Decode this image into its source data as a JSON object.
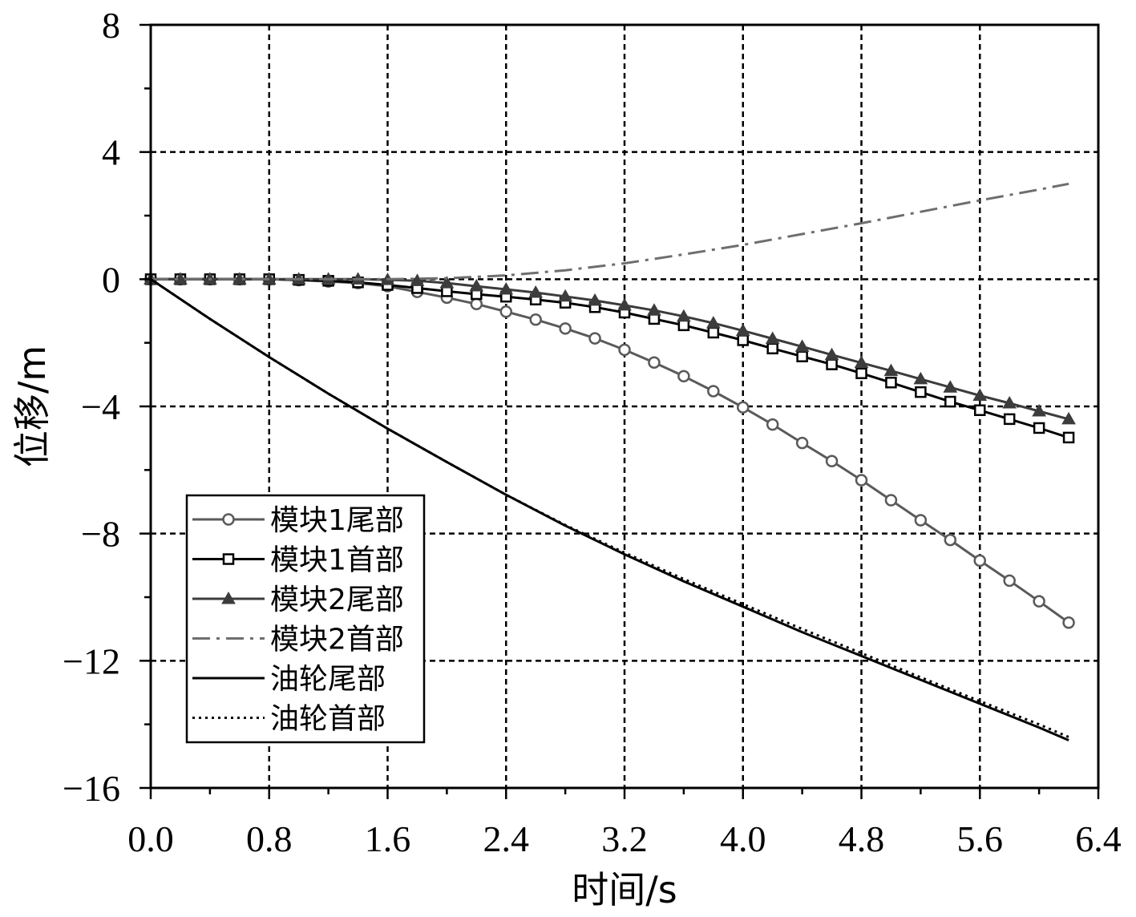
{
  "chart_data": {
    "type": "line",
    "title": "",
    "xlabel": "时间/s",
    "ylabel": "位移/m",
    "xlim": [
      0,
      6.4
    ],
    "ylim": [
      -16,
      8
    ],
    "xticks": [
      0.0,
      0.8,
      1.6,
      2.4,
      3.2,
      4.0,
      4.8,
      5.6,
      6.4
    ],
    "xtick_labels": [
      "0.0",
      "0.8",
      "1.6",
      "2.4",
      "3.2",
      "4.0",
      "4.8",
      "5.6",
      "6.4"
    ],
    "yticks": [
      8,
      4,
      0,
      -4,
      -8,
      -12,
      -16
    ],
    "ytick_labels": [
      "8",
      "4",
      "0",
      "−4",
      "−8",
      "−12",
      "−16"
    ],
    "grid": true,
    "legend_position": "bottom-left",
    "marker_x": [
      0.0,
      0.2,
      0.4,
      0.6,
      0.8,
      1.0,
      1.2,
      1.4,
      1.6,
      1.8,
      2.0,
      2.2,
      2.4,
      2.6,
      2.8,
      3.0,
      3.2,
      3.4,
      3.6,
      3.8,
      4.0,
      4.2,
      4.4,
      4.6,
      4.8,
      5.0,
      5.2,
      5.4,
      5.6,
      5.8,
      6.0,
      6.2
    ],
    "series": [
      {
        "name": "模块1尾部",
        "color": "#5a5a5a",
        "line": "solid",
        "marker": "circle",
        "values": [
          0,
          0,
          0,
          0,
          0,
          -0.03,
          -0.07,
          -0.12,
          -0.22,
          -0.4,
          -0.58,
          -0.78,
          -1.02,
          -1.27,
          -1.55,
          -1.86,
          -2.22,
          -2.62,
          -3.05,
          -3.52,
          -4.03,
          -4.57,
          -5.15,
          -5.72,
          -6.32,
          -6.95,
          -7.58,
          -8.2,
          -8.85,
          -9.48,
          -10.13,
          -10.8
        ]
      },
      {
        "name": "模块1首部",
        "color": "#000000",
        "line": "solid",
        "marker": "square",
        "values": [
          0,
          0,
          0,
          0,
          0,
          -0.02,
          -0.05,
          -0.1,
          -0.18,
          -0.28,
          -0.38,
          -0.47,
          -0.55,
          -0.64,
          -0.74,
          -0.88,
          -1.05,
          -1.25,
          -1.45,
          -1.68,
          -1.92,
          -2.18,
          -2.43,
          -2.68,
          -2.96,
          -3.25,
          -3.55,
          -3.85,
          -4.12,
          -4.4,
          -4.68,
          -4.98
        ]
      },
      {
        "name": "模块2尾部",
        "color": "#3c3c3c",
        "line": "solid",
        "marker": "triangle",
        "values": [
          0,
          0,
          0,
          0,
          0,
          0,
          0,
          0,
          -0.02,
          -0.05,
          -0.12,
          -0.22,
          -0.32,
          -0.42,
          -0.54,
          -0.67,
          -0.82,
          -0.98,
          -1.17,
          -1.38,
          -1.62,
          -1.87,
          -2.12,
          -2.38,
          -2.63,
          -2.88,
          -3.14,
          -3.4,
          -3.66,
          -3.9,
          -4.15,
          -4.4
        ]
      },
      {
        "name": "模块2首部",
        "color": "#6e6e6e",
        "line": "dashdot",
        "marker": "none",
        "x": [
          0,
          0.4,
          0.8,
          1.2,
          1.6,
          2.0,
          2.4,
          2.8,
          3.2,
          3.6,
          4.0,
          4.4,
          4.8,
          5.2,
          5.6,
          6.0,
          6.2
        ],
        "values": [
          0,
          0,
          0,
          0,
          0,
          0.03,
          0.12,
          0.28,
          0.5,
          0.78,
          1.08,
          1.42,
          1.76,
          2.12,
          2.48,
          2.82,
          3.0
        ]
      },
      {
        "name": "油轮尾部",
        "color": "#000000",
        "line": "solid",
        "marker": "none",
        "x": [
          0,
          0.4,
          0.8,
          1.2,
          1.6,
          2.0,
          2.4,
          2.8,
          3.2,
          3.6,
          4.0,
          4.4,
          4.8,
          5.2,
          5.6,
          6.0,
          6.2
        ],
        "values": [
          0,
          -1.25,
          -2.45,
          -3.6,
          -4.7,
          -5.75,
          -6.78,
          -7.75,
          -8.65,
          -9.5,
          -10.3,
          -11.1,
          -11.85,
          -12.6,
          -13.35,
          -14.1,
          -14.5
        ]
      },
      {
        "name": "油轮首部",
        "color": "#000000",
        "line": "dotted",
        "marker": "none",
        "x": [
          0,
          0.4,
          0.8,
          1.2,
          1.6,
          2.0,
          2.4,
          2.8,
          3.2,
          3.6,
          4.0,
          4.4,
          4.8,
          5.2,
          5.6,
          6.0,
          6.2
        ],
        "values": [
          0,
          -1.25,
          -2.45,
          -3.6,
          -4.7,
          -5.75,
          -6.78,
          -7.73,
          -8.6,
          -9.43,
          -10.22,
          -11.0,
          -11.76,
          -12.52,
          -13.27,
          -14.0,
          -14.4
        ]
      }
    ]
  }
}
